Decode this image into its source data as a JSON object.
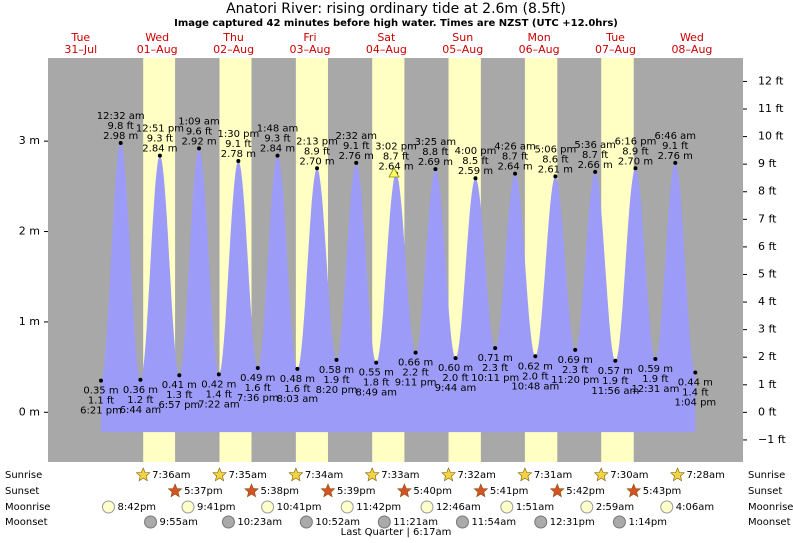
{
  "chart_data": {
    "type": "area",
    "title": "Anatori River: rising  ordinary tide at 2.6m (8.5ft)",
    "subtitle": "Image captured 42 minutes before high water. Times are NZST (UTC +12.0hrs)",
    "days": [
      {
        "weekday": "Tue",
        "date": "31–Jul"
      },
      {
        "weekday": "Wed",
        "date": "01–Aug"
      },
      {
        "weekday": "Thu",
        "date": "02–Aug"
      },
      {
        "weekday": "Fri",
        "date": "03–Aug"
      },
      {
        "weekday": "Sat",
        "date": "04–Aug"
      },
      {
        "weekday": "Sun",
        "date": "05–Aug"
      },
      {
        "weekday": "Mon",
        "date": "06–Aug"
      },
      {
        "weekday": "Tue",
        "date": "07–Aug"
      },
      {
        "weekday": "Wed",
        "date": "08–Aug"
      }
    ],
    "times": [
      "6:21 pm",
      "12:32 am",
      "6:44 am",
      "12:51 pm",
      "6:57 pm",
      "1:09 am",
      "7:22 am",
      "1:30 pm",
      "7:36 pm",
      "1:48 am",
      "8:03 am",
      "2:13 pm",
      "8:20 pm",
      "2:32 am",
      "8:49 am",
      "3:02 pm",
      "9:11 pm",
      "3:25 am",
      "9:44 am",
      "4:00 pm",
      "10:11 pm",
      "4:26 am",
      "10:48 am",
      "5:06 pm",
      "11:20 pm",
      "5:36 am",
      "11:56 am",
      "6:16 pm",
      "12:31 am",
      "6:46 am",
      "1:04 pm"
    ],
    "heights_m": {
      "values": [
        0.35,
        2.98,
        0.36,
        2.84,
        0.41,
        2.92,
        0.42,
        2.78,
        0.49,
        2.84,
        0.48,
        2.7,
        0.58,
        2.76,
        0.55,
        2.64,
        0.66,
        2.69,
        0.6,
        2.59,
        0.71,
        2.64,
        0.62,
        2.61,
        0.69,
        2.66,
        0.57,
        2.7,
        0.59,
        2.76,
        0.44
      ],
      "value_labels": [
        "0.35 m",
        "2.98 m",
        "0.36 m",
        "2.84 m",
        "0.41 m",
        "2.92 m",
        "0.42 m",
        "2.78 m",
        "0.49 m",
        "2.84 m",
        "0.48 m",
        "2.70 m",
        "0.58 m",
        "2.76 m",
        "0.55 m",
        "2.64 m",
        "0.66 m",
        "2.69 m",
        "0.60 m",
        "2.59 m",
        "0.71 m",
        "2.64 m",
        "0.62 m",
        "2.61 m",
        "0.69 m",
        "2.66 m",
        "0.57 m",
        "2.70 m",
        "0.59 m",
        "2.76 m",
        "0.44 m"
      ]
    },
    "heights_ft": {
      "values": [
        1.1,
        9.8,
        1.2,
        9.3,
        1.3,
        9.6,
        1.4,
        9.1,
        1.6,
        9.3,
        1.6,
        8.9,
        1.9,
        9.1,
        1.8,
        8.7,
        2.2,
        8.8,
        2.0,
        8.5,
        2.3,
        8.7,
        2.0,
        8.6,
        2.3,
        8.7,
        1.9,
        8.9,
        1.9,
        9.1,
        1.4
      ],
      "value_labels": [
        "1.1 ft",
        "9.8 ft",
        "1.2 ft",
        "9.3 ft",
        "1.3 ft",
        "9.6 ft",
        "1.4 ft",
        "9.1 ft",
        "1.6 ft",
        "9.3 ft",
        "1.6 ft",
        "8.9 ft",
        "1.9 ft",
        "9.1 ft",
        "1.8 ft",
        "8.7 ft",
        "2.2 ft",
        "8.8 ft",
        "2.0 ft",
        "8.5 ft",
        "2.3 ft",
        "8.7 ft",
        "2.0 ft",
        "8.6 ft",
        "2.3 ft",
        "8.7 ft",
        "1.9 ft",
        "8.9 ft",
        "1.9 ft",
        "9.1 ft",
        "1.4 ft"
      ]
    },
    "color": "#9c9cf8",
    "ylim": [
      -0.55,
      3.92
    ],
    "yticks": [
      {
        "value": 0,
        "label": "0 m"
      },
      {
        "value": 1,
        "label": "1 m"
      },
      {
        "value": 2,
        "label": "2 m"
      },
      {
        "value": 3,
        "label": "3 m"
      }
    ],
    "y2lim": [
      -1.8,
      12.85
    ],
    "y2ticks": [
      {
        "value": -1,
        "label": "−1 ft"
      },
      {
        "value": 0,
        "label": "0 ft"
      },
      {
        "value": 1,
        "label": "1 ft"
      },
      {
        "value": 2,
        "label": "2 ft"
      },
      {
        "value": 3,
        "label": "3 ft"
      },
      {
        "value": 4,
        "label": "4 ft"
      },
      {
        "value": 5,
        "label": "5 ft"
      },
      {
        "value": 6,
        "label": "6 ft"
      },
      {
        "value": 7,
        "label": "7 ft"
      },
      {
        "value": 8,
        "label": "8 ft"
      },
      {
        "value": 9,
        "label": "9 ft"
      },
      {
        "value": 10,
        "label": "10 ft"
      },
      {
        "value": 11,
        "label": "11 ft"
      },
      {
        "value": 12,
        "label": "12 ft"
      }
    ],
    "rows": {
      "labels": {
        "sunrise": "Sunrise",
        "sunset": "Sunset",
        "moonrise": "Moonrise",
        "moonset": "Moonset"
      },
      "sunrise": [
        null,
        "7:36am",
        "7:35am",
        "7:34am",
        "7:33am",
        "7:32am",
        "7:31am",
        "7:30am",
        "7:28am"
      ],
      "sunset": [
        null,
        "5:37pm",
        "5:38pm",
        "5:39pm",
        "5:40pm",
        "5:41pm",
        "5:42pm",
        "5:43pm",
        null
      ],
      "moonrise": [
        "8:42pm",
        "9:41pm",
        "10:41pm",
        "11:42pm",
        null,
        "12:46am",
        "1:51am",
        "2:59am",
        "4:06am"
      ],
      "moonset": [
        null,
        "9:55am",
        "10:23am",
        "10:52am",
        "11:21am",
        "11:54am",
        "12:31pm",
        "1:14pm",
        null
      ]
    },
    "moon_phase": "Last Quarter | 6:17am"
  }
}
